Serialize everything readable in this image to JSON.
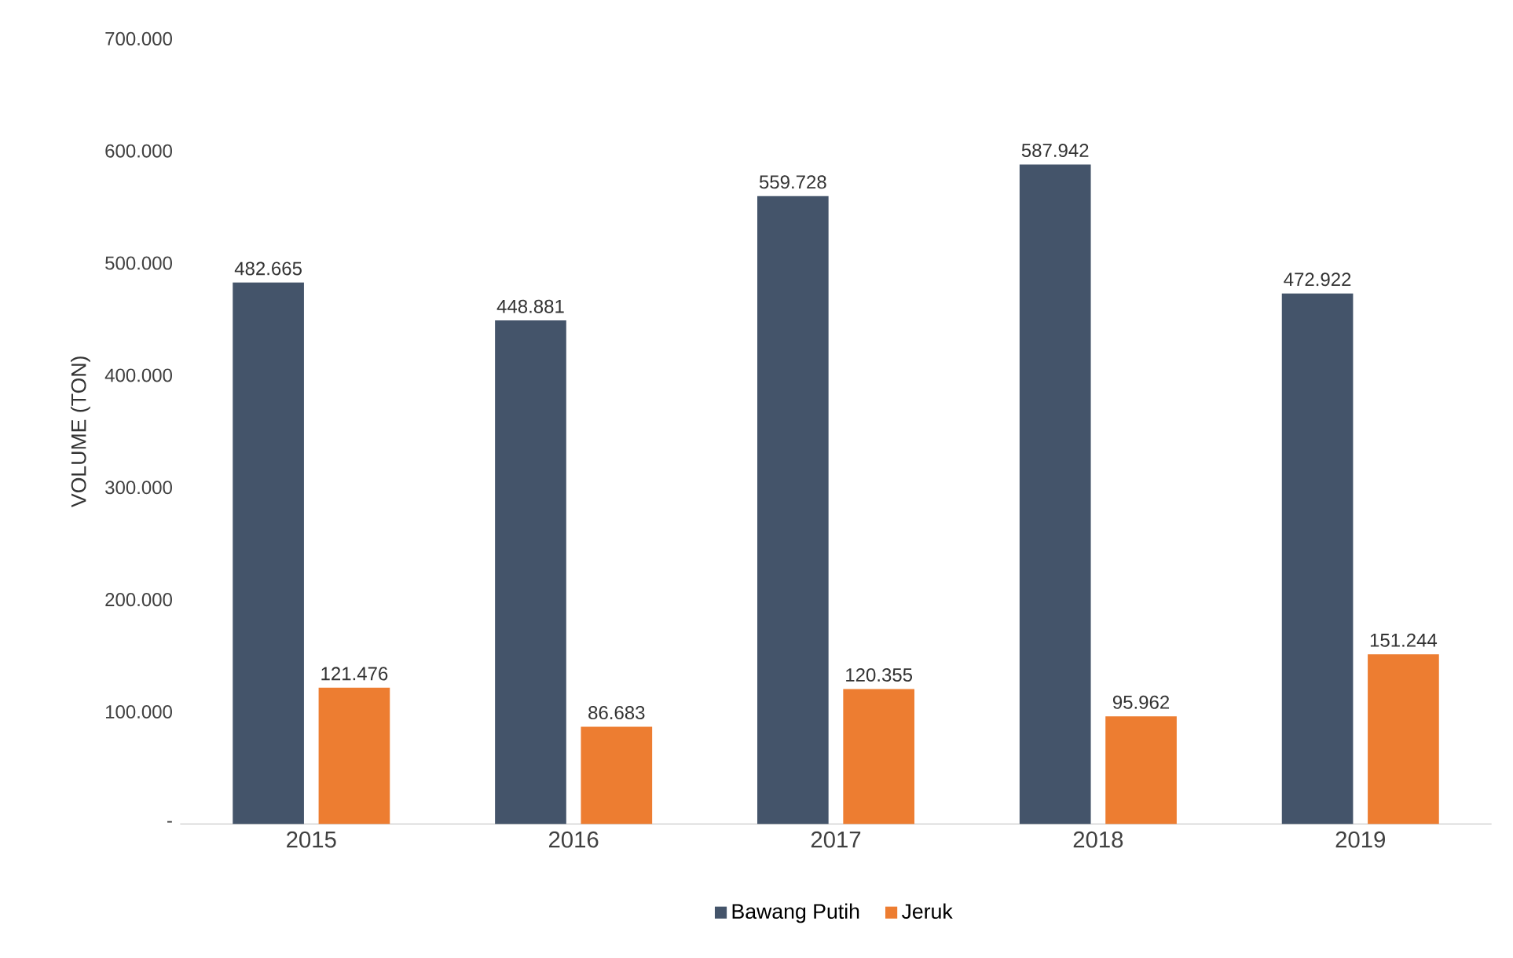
{
  "chart_data": {
    "type": "bar",
    "ylabel": "VOLUME (TON)",
    "categories": [
      "2015",
      "2016",
      "2017",
      "2018",
      "2019"
    ],
    "series": [
      {
        "name": "Bawang Putih",
        "color": "#44546a",
        "values": [
          482665,
          448881,
          559728,
          587942,
          472922
        ],
        "value_labels": [
          "482.665",
          "448.881",
          "559.728",
          "587.942",
          "472.922"
        ]
      },
      {
        "name": "Jeruk",
        "color": "#ed7d31",
        "values": [
          121476,
          86683,
          120355,
          95962,
          151244
        ],
        "value_labels": [
          "121.476",
          "86.683",
          "120.355",
          "95.962",
          "151.244"
        ]
      }
    ],
    "ylim": [
      0,
      700000
    ],
    "yticks": [
      {
        "value": 0,
        "label": "-"
      },
      {
        "value": 100000,
        "label": "100.000"
      },
      {
        "value": 200000,
        "label": "200.000"
      },
      {
        "value": 300000,
        "label": "300.000"
      },
      {
        "value": 400000,
        "label": "400.000"
      },
      {
        "value": 500000,
        "label": "500.000"
      },
      {
        "value": 600000,
        "label": "600.000"
      },
      {
        "value": 700000,
        "label": "700.000"
      }
    ],
    "legend": "bottom"
  }
}
